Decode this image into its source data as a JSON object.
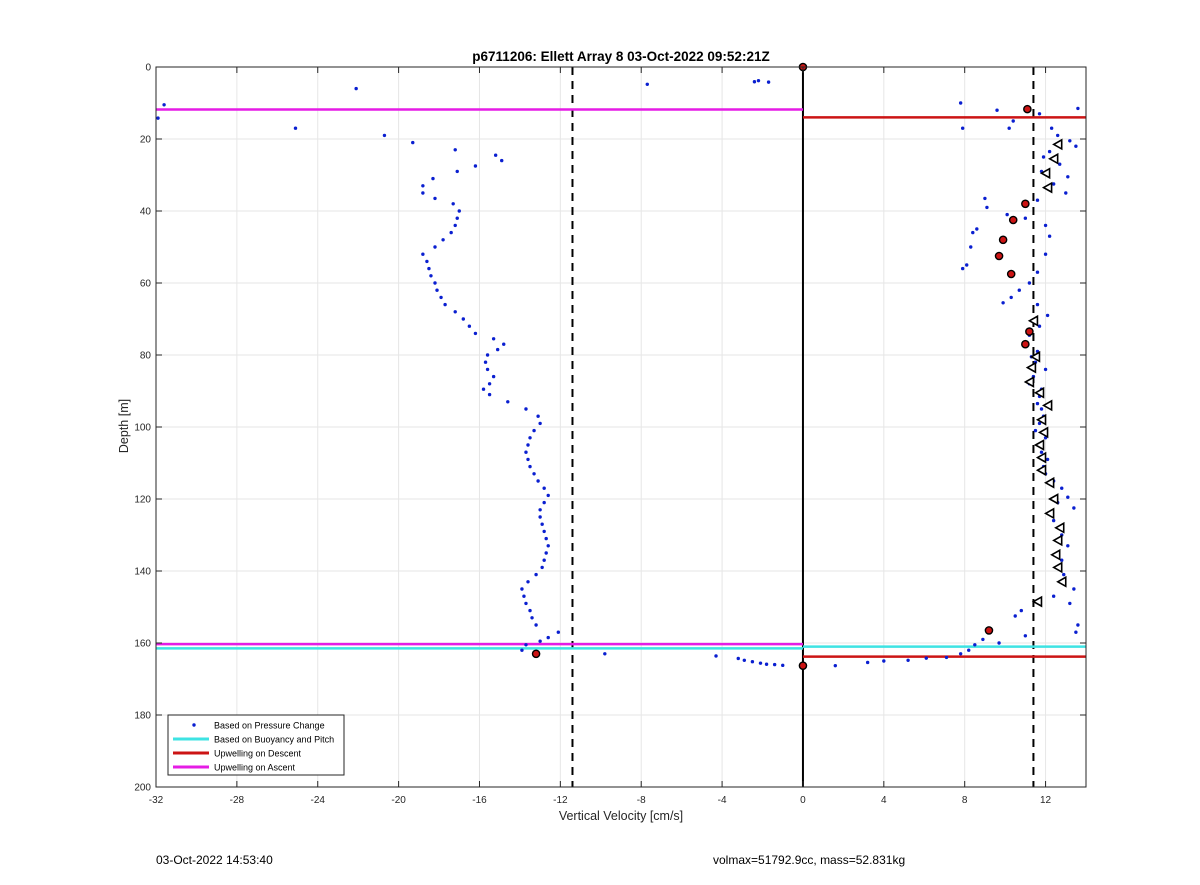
{
  "figure": {
    "footer_left": "03-Oct-2022 14:53:40",
    "footer_right": "volmax=51792.9cc, mass=52.831kg"
  },
  "chart_data": {
    "type": "scatter",
    "title": "p6711206: Ellett Array 8 03-Oct-2022 09:52:21Z",
    "xlabel": "Vertical Velocity [cm/s]",
    "ylabel": "Depth [m]",
    "xlim": [
      -32,
      14
    ],
    "ylim": [
      0,
      200
    ],
    "y_reversed": true,
    "grid": true,
    "legend_position": "bottom-left",
    "x_ticks": [
      "-32",
      "-28",
      "-24",
      "-20",
      "-16",
      "-12",
      "-8",
      "-4",
      "0",
      "4",
      "8",
      "12"
    ],
    "y_ticks": [
      "0",
      "20",
      "40",
      "60",
      "80",
      "100",
      "120",
      "140",
      "160",
      "180",
      "200"
    ],
    "reference_lines": {
      "zero_line": {
        "x": 0,
        "color": "#000000",
        "style": "solid"
      },
      "dashed_lines": [
        {
          "x": -11.4,
          "color": "#000000"
        },
        {
          "x": 11.4,
          "color": "#000000"
        }
      ]
    },
    "series": [
      {
        "name": "Based on Pressure Change",
        "kind": "scatter",
        "color": "#0a1fd0",
        "points": [
          [
            -31.6,
            10.5
          ],
          [
            -31.9,
            14.2
          ],
          [
            -22.1,
            6.0
          ],
          [
            -25.1,
            17.0
          ],
          [
            -20.7,
            19.0
          ],
          [
            -19.3,
            21.0
          ],
          [
            -17.2,
            23.0
          ],
          [
            -15.2,
            24.5
          ],
          [
            -14.9,
            26.0
          ],
          [
            -16.2,
            27.5
          ],
          [
            -17.1,
            29.0
          ],
          [
            -18.3,
            31.0
          ],
          [
            -18.8,
            33.0
          ],
          [
            -18.8,
            35.0
          ],
          [
            -18.2,
            36.5
          ],
          [
            -17.3,
            38.0
          ],
          [
            -17.0,
            40.0
          ],
          [
            -17.1,
            42.0
          ],
          [
            -17.2,
            44.0
          ],
          [
            -17.4,
            46.0
          ],
          [
            -17.8,
            48.0
          ],
          [
            -18.2,
            50.0
          ],
          [
            -18.8,
            52.0
          ],
          [
            -18.6,
            54.0
          ],
          [
            -18.5,
            56.0
          ],
          [
            -18.4,
            58.0
          ],
          [
            -18.2,
            60.0
          ],
          [
            -18.1,
            62.0
          ],
          [
            -17.9,
            64.0
          ],
          [
            -17.7,
            66.0
          ],
          [
            -17.2,
            68.0
          ],
          [
            -16.8,
            70.0
          ],
          [
            -16.5,
            72.0
          ],
          [
            -16.2,
            74.0
          ],
          [
            -15.3,
            75.5
          ],
          [
            -14.8,
            77.0
          ],
          [
            -15.1,
            78.5
          ],
          [
            -15.6,
            80.0
          ],
          [
            -15.7,
            82.0
          ],
          [
            -15.6,
            84.0
          ],
          [
            -15.3,
            86.0
          ],
          [
            -15.5,
            88.0
          ],
          [
            -15.8,
            89.5
          ],
          [
            -15.5,
            91.0
          ],
          [
            -14.6,
            93.0
          ],
          [
            -13.7,
            95.0
          ],
          [
            -13.1,
            97.0
          ],
          [
            -13.0,
            99.0
          ],
          [
            -13.3,
            101.0
          ],
          [
            -13.5,
            103.0
          ],
          [
            -13.6,
            105.0
          ],
          [
            -13.7,
            107.0
          ],
          [
            -13.6,
            109.0
          ],
          [
            -13.5,
            111.0
          ],
          [
            -13.3,
            113.0
          ],
          [
            -13.1,
            115.0
          ],
          [
            -12.8,
            117.0
          ],
          [
            -12.6,
            119.0
          ],
          [
            -12.8,
            121.0
          ],
          [
            -13.0,
            123.0
          ],
          [
            -13.0,
            125.0
          ],
          [
            -12.9,
            127.0
          ],
          [
            -12.8,
            129.0
          ],
          [
            -12.7,
            131.0
          ],
          [
            -12.6,
            133.0
          ],
          [
            -12.7,
            135.0
          ],
          [
            -12.8,
            137.0
          ],
          [
            -12.9,
            139.0
          ],
          [
            -13.2,
            141.0
          ],
          [
            -13.6,
            143.0
          ],
          [
            -13.9,
            145.0
          ],
          [
            -13.8,
            147.0
          ],
          [
            -13.7,
            149.0
          ],
          [
            -13.5,
            151.0
          ],
          [
            -13.4,
            153.0
          ],
          [
            -13.2,
            155.0
          ],
          [
            -12.1,
            157.0
          ],
          [
            -12.6,
            158.5
          ],
          [
            -13.0,
            159.5
          ],
          [
            -13.7,
            160.5
          ],
          [
            -13.9,
            162.0
          ],
          [
            -9.8,
            163.0
          ],
          [
            -7.7,
            4.8
          ],
          [
            -2.4,
            4.1
          ],
          [
            -2.2,
            3.8
          ],
          [
            -1.7,
            4.2
          ],
          [
            -4.3,
            163.6
          ],
          [
            -3.2,
            164.3
          ],
          [
            -2.9,
            164.8
          ],
          [
            -2.5,
            165.2
          ],
          [
            -2.1,
            165.6
          ],
          [
            -1.8,
            165.9
          ],
          [
            -1.4,
            166.0
          ],
          [
            -1.0,
            166.2
          ],
          [
            1.6,
            166.3
          ],
          [
            3.2,
            165.4
          ],
          [
            4.0,
            165.0
          ],
          [
            5.2,
            164.8
          ],
          [
            6.1,
            164.2
          ],
          [
            7.8,
            10.0
          ],
          [
            7.9,
            17.0
          ],
          [
            9.6,
            12.0
          ],
          [
            10.2,
            17.0
          ],
          [
            10.4,
            15.0
          ],
          [
            11.7,
            13.0
          ],
          [
            13.6,
            11.5
          ],
          [
            12.3,
            17.0
          ],
          [
            12.6,
            19.0
          ],
          [
            13.2,
            20.5
          ],
          [
            13.5,
            22.0
          ],
          [
            12.2,
            23.5
          ],
          [
            11.9,
            25.0
          ],
          [
            12.7,
            27.0
          ],
          [
            11.8,
            29.0
          ],
          [
            13.1,
            30.5
          ],
          [
            12.4,
            32.5
          ],
          [
            13.0,
            35.0
          ],
          [
            11.6,
            37.0
          ],
          [
            9.0,
            36.5
          ],
          [
            9.1,
            39.0
          ],
          [
            10.1,
            41.0
          ],
          [
            11.0,
            42.0
          ],
          [
            12.0,
            44.0
          ],
          [
            8.6,
            45.0
          ],
          [
            8.4,
            46.0
          ],
          [
            12.2,
            47.0
          ],
          [
            8.3,
            50.0
          ],
          [
            12.0,
            52.0
          ],
          [
            8.1,
            55.0
          ],
          [
            7.9,
            56.0
          ],
          [
            11.6,
            57.0
          ],
          [
            11.2,
            60.0
          ],
          [
            10.7,
            62.0
          ],
          [
            10.3,
            64.0
          ],
          [
            9.9,
            65.5
          ],
          [
            11.6,
            66.0
          ],
          [
            12.1,
            69.0
          ],
          [
            11.7,
            72.0
          ],
          [
            11.2,
            74.5
          ],
          [
            11.0,
            77.0
          ],
          [
            11.6,
            79.0
          ],
          [
            11.3,
            80.5
          ],
          [
            11.5,
            82.0
          ],
          [
            12.0,
            84.0
          ],
          [
            11.4,
            86.0
          ],
          [
            11.2,
            88.0
          ],
          [
            11.8,
            89.5
          ],
          [
            11.7,
            91.5
          ],
          [
            11.6,
            93.5
          ],
          [
            11.8,
            95.0
          ],
          [
            11.9,
            97.0
          ],
          [
            11.7,
            99.0
          ],
          [
            11.5,
            101.0
          ],
          [
            12.0,
            103.0
          ],
          [
            11.7,
            105.0
          ],
          [
            11.8,
            107.0
          ],
          [
            12.1,
            109.0
          ],
          [
            11.9,
            111.0
          ],
          [
            12.0,
            113.0
          ],
          [
            12.4,
            115.0
          ],
          [
            12.8,
            117.0
          ],
          [
            13.1,
            119.5
          ],
          [
            12.6,
            121.0
          ],
          [
            13.4,
            122.5
          ],
          [
            12.4,
            126.0
          ],
          [
            12.8,
            130.0
          ],
          [
            13.1,
            133.0
          ],
          [
            12.8,
            137.0
          ],
          [
            12.9,
            141.0
          ],
          [
            13.4,
            145.0
          ],
          [
            12.4,
            147.0
          ],
          [
            13.2,
            149.0
          ],
          [
            10.8,
            151.0
          ],
          [
            10.5,
            152.5
          ],
          [
            13.6,
            155.0
          ],
          [
            13.5,
            157.0
          ],
          [
            11.0,
            158.0
          ],
          [
            8.9,
            159.0
          ],
          [
            8.5,
            160.5
          ],
          [
            8.2,
            162.0
          ],
          [
            7.8,
            163.0
          ],
          [
            7.1,
            164.0
          ],
          [
            9.7,
            160.0
          ]
        ]
      },
      {
        "name": "Based on Buoyancy and Pitch",
        "kind": "line",
        "color": "#3ee3e3",
        "segments": [
          {
            "x": [
              -32,
              0
            ],
            "y": [
              161.5,
              161.5
            ]
          },
          {
            "x": [
              0,
              14
            ],
            "y": [
              161.0,
              161.0
            ]
          }
        ]
      },
      {
        "name": "Upwelling on Descent",
        "kind": "line",
        "color": "#cc1414",
        "segments": [
          {
            "x": [
              0,
              14
            ],
            "y": [
              14.0,
              14.0
            ]
          },
          {
            "x": [
              0,
              14
            ],
            "y": [
              163.8,
              163.8
            ]
          }
        ]
      },
      {
        "name": "Upwelling on Ascent",
        "kind": "line",
        "color": "#e51ce5",
        "segments": [
          {
            "x": [
              -32,
              0
            ],
            "y": [
              11.8,
              11.8
            ]
          },
          {
            "x": [
              -32,
              0
            ],
            "y": [
              160.3,
              160.3
            ]
          }
        ]
      }
    ],
    "descent_markers": [
      [
        0.0,
        0.0
      ],
      [
        11.1,
        11.7
      ],
      [
        11.0,
        38.0
      ],
      [
        10.4,
        42.5
      ],
      [
        9.9,
        48.0
      ],
      [
        9.7,
        52.5
      ],
      [
        10.3,
        57.5
      ],
      [
        11.2,
        73.5
      ],
      [
        11.0,
        77.0
      ],
      [
        9.2,
        156.5
      ],
      [
        -13.2,
        163.0
      ],
      [
        0.0,
        166.3
      ]
    ],
    "ascent_markers": [
      [
        12.6,
        21.5
      ],
      [
        12.4,
        25.5
      ],
      [
        12.0,
        29.5
      ],
      [
        12.1,
        33.5
      ],
      [
        11.4,
        70.5
      ],
      [
        11.5,
        80.5
      ],
      [
        11.3,
        83.5
      ],
      [
        11.2,
        87.5
      ],
      [
        11.7,
        90.5
      ],
      [
        12.1,
        94.0
      ],
      [
        11.8,
        98.0
      ],
      [
        11.9,
        101.5
      ],
      [
        11.7,
        105.0
      ],
      [
        11.8,
        108.5
      ],
      [
        11.8,
        112.0
      ],
      [
        12.2,
        115.5
      ],
      [
        12.4,
        120.0
      ],
      [
        12.2,
        124.0
      ],
      [
        12.7,
        128.0
      ],
      [
        12.6,
        131.5
      ],
      [
        12.5,
        135.5
      ],
      [
        12.6,
        139.0
      ],
      [
        12.8,
        143.0
      ],
      [
        11.6,
        148.5
      ]
    ]
  }
}
